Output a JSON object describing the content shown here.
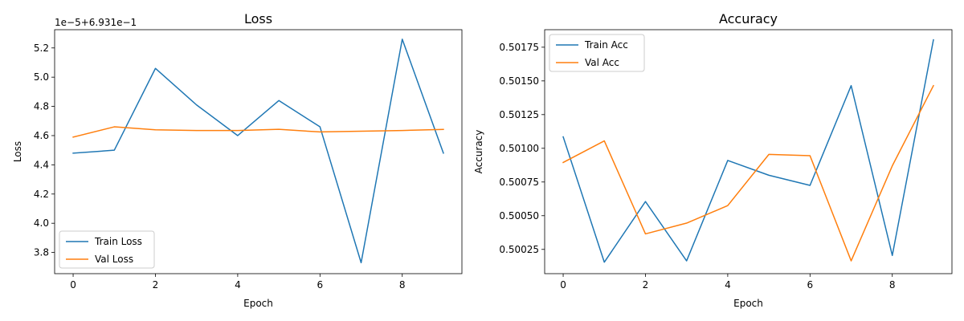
{
  "chart_data": [
    {
      "type": "line",
      "title": "Loss",
      "xlabel": "Epoch",
      "ylabel": "Loss",
      "y_offset_label": "1e−5+6.931e−1",
      "x": [
        0,
        1,
        2,
        3,
        4,
        5,
        6,
        7,
        8,
        9
      ],
      "xlim": [
        -0.45,
        9.45
      ],
      "ylim": [
        3.655,
        5.325
      ],
      "x_ticks": [
        0,
        2,
        4,
        6,
        8
      ],
      "y_ticks": [
        3.8,
        4.0,
        4.2,
        4.4,
        4.6,
        4.8,
        5.0,
        5.2
      ],
      "y_tick_labels": [
        "3.8",
        "4.0",
        "4.2",
        "4.4",
        "4.6",
        "4.8",
        "5.0",
        "5.2"
      ],
      "grid": false,
      "legend_position": "lower-left",
      "series": [
        {
          "name": "Train Loss",
          "color": "#1f77b4",
          "values": [
            4.48,
            4.5,
            5.06,
            4.81,
            4.6,
            4.84,
            4.66,
            3.73,
            5.26,
            4.48
          ]
        },
        {
          "name": "Val Loss",
          "color": "#ff7f0e",
          "values": [
            4.59,
            4.66,
            4.64,
            4.635,
            4.635,
            4.643,
            4.625,
            4.63,
            4.635,
            4.642
          ]
        }
      ]
    },
    {
      "type": "line",
      "title": "Accuracy",
      "xlabel": "Epoch",
      "ylabel": "Accuracy",
      "x": [
        0,
        1,
        2,
        3,
        4,
        5,
        6,
        7,
        8,
        9
      ],
      "xlim": [
        -0.45,
        9.45
      ],
      "ylim": [
        0.50007,
        0.50188
      ],
      "x_ticks": [
        0,
        2,
        4,
        6,
        8
      ],
      "y_ticks": [
        0.50025,
        0.5005,
        0.50075,
        0.501,
        0.50125,
        0.5015,
        0.50175
      ],
      "y_tick_labels": [
        "0.50025",
        "0.50050",
        "0.50075",
        "0.50100",
        "0.50125",
        "0.50150",
        "0.50175"
      ],
      "grid": false,
      "legend_position": "upper-left",
      "series": [
        {
          "name": "Train Acc",
          "color": "#1f77b4",
          "values": [
            0.501085,
            0.500155,
            0.500605,
            0.500165,
            0.50091,
            0.5008,
            0.500725,
            0.501465,
            0.500205,
            0.501805
          ]
        },
        {
          "name": "Val Acc",
          "color": "#ff7f0e",
          "values": [
            0.500895,
            0.501055,
            0.500365,
            0.500445,
            0.500575,
            0.500955,
            0.500945,
            0.500165,
            0.50087,
            0.501465
          ]
        }
      ]
    }
  ]
}
